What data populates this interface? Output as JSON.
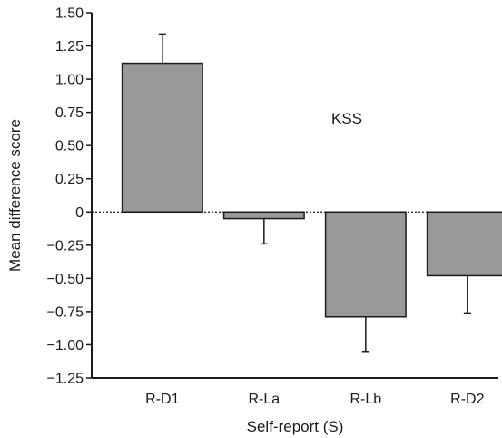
{
  "chart_data": {
    "type": "bar",
    "title": "",
    "annotation": "KSS",
    "xlabel": "Self-report (S)",
    "ylabel": "Mean difference score",
    "categories": [
      "R-D1",
      "R-La",
      "R-Lb",
      "R-D2"
    ],
    "values": [
      1.12,
      -0.05,
      -0.79,
      -0.48
    ],
    "error_bars": [
      0.22,
      0.19,
      0.26,
      0.28
    ],
    "ylim": [
      -1.25,
      1.5
    ],
    "yticks": [
      "1.50",
      "1.25",
      "1.00",
      "0.75",
      "0.50",
      "0.25",
      "0",
      "−0.25",
      "−0.50",
      "−0.75",
      "−1.00",
      "−1.25"
    ],
    "ytick_values": [
      1.5,
      1.25,
      1.0,
      0.75,
      0.5,
      0.25,
      0,
      -0.25,
      -0.5,
      -0.75,
      -1.0,
      -1.25
    ],
    "grid": false,
    "zero_line": "dotted",
    "bar_color": "#999999",
    "bar_edge_color": "#1a1a1a"
  }
}
